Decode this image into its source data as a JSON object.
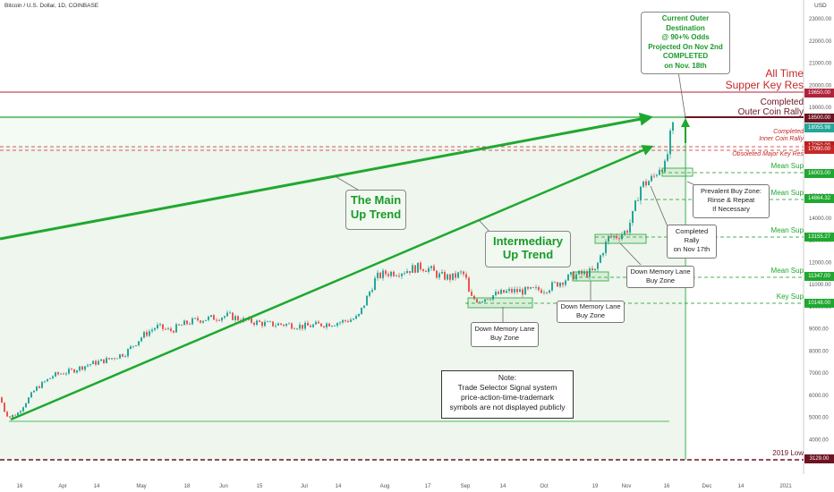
{
  "symbol": "Bitcoin / U.S. Dollar, 1D, COINBASE",
  "currency": "USD",
  "colors": {
    "up": "#26a69a",
    "down": "#ef5350",
    "trend": "#1fa82f",
    "resistance": "#b0213a",
    "major_res": "#c62828",
    "support_dash": "#4caf50",
    "zone_fill": "#eef7ee",
    "outer_fill": "#f4faf4"
  },
  "chart_data": {
    "type": "candlestick",
    "x_ticks": [
      "16",
      "Apr",
      "14",
      "May",
      "18",
      "Jun",
      "15",
      "Jul",
      "14",
      "Aug",
      "17",
      "Sep",
      "14",
      "Oct",
      "19",
      "Nov",
      "16",
      "Dec",
      "14",
      "2021"
    ],
    "y_ticks": [
      23000,
      22000,
      21000,
      20000,
      19000,
      18000,
      17000,
      16000,
      15000,
      14000,
      13000,
      12000,
      11000,
      10000,
      9000,
      8000,
      7000,
      6000,
      5000,
      4000,
      3000
    ],
    "ylim": [
      2800,
      23600
    ],
    "key_levels": [
      {
        "label": "19650.00",
        "value": 19650,
        "name": "All Time Supper Key Res"
      },
      {
        "label": "18500.00",
        "value": 18500,
        "name": "Completed Outer Coin Rally"
      },
      {
        "label": "18055.98",
        "value": 18055.98,
        "name": "Last price"
      },
      {
        "label": "17250.00",
        "value": 17250,
        "name": "Completed Inner Coin Rally"
      },
      {
        "label": "17090.00",
        "value": 17090,
        "name": "Obsoleted Major Key Res"
      },
      {
        "label": "16003.00",
        "value": 16003,
        "name": "Mean Sup"
      },
      {
        "label": "14864.32",
        "value": 14864.32,
        "name": "Mean Sup"
      },
      {
        "label": "13155.27",
        "value": 13155.27,
        "name": "Mean Sup"
      },
      {
        "label": "11347.00",
        "value": 11347,
        "name": "Mean Sup"
      },
      {
        "label": "10148.00",
        "value": 10148,
        "name": "Key Sup"
      },
      {
        "label": "3129.00",
        "value": 3129,
        "name": "2019 Low"
      }
    ],
    "trend_lines": [
      {
        "name": "The Main Up Trend"
      },
      {
        "name": "Intermediary Up Trend"
      }
    ]
  },
  "annotations": {
    "ath_res": [
      "All Time",
      "Supper Key Res"
    ],
    "completed_outer": [
      "Completed",
      "Outer Coin Rally"
    ],
    "completed_inner": [
      "Completed",
      "Inner Coin Rally"
    ],
    "obsoleted": "Obsoleted Major Key Res",
    "mean_sup": "Mean Sup",
    "key_sup": "Key Sup",
    "low_2019": "2019 Low",
    "main_trend": [
      "The Main",
      "Up Trend"
    ],
    "intermediary": [
      "Intermediary",
      "Up Trend"
    ],
    "destination": [
      "Current Outer",
      "Destination",
      "@ 90+% Odds",
      "Projected On Nov 2nd",
      "COMPLETED",
      "on Nov. 18th"
    ],
    "prevalent": [
      "Prevalent Buy Zone:",
      "Rinse & Repeat",
      "If Necessary"
    ],
    "completed_rally": [
      "Completed",
      "Rally",
      "on Nov 17th"
    ],
    "dml": [
      "Down Memory Lane",
      "Buy Zone"
    ],
    "note": [
      "Note:",
      "Trade Selector Signal system",
      "price-action-time-trademark",
      "symbols are not displayed publicly"
    ]
  }
}
